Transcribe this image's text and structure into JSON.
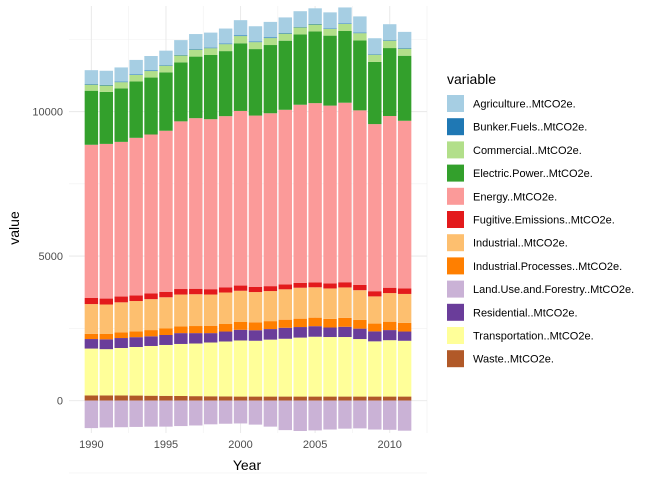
{
  "chart_data": {
    "type": "bar",
    "stacked": true,
    "xlabel": "Year",
    "ylabel": "value",
    "legend_title": "variable",
    "legend_position": "right",
    "grid": true,
    "xlim": [
      1988.5,
      2012.5
    ],
    "ylim": [
      -1120,
      13650
    ],
    "x_ticks": [
      1990,
      1995,
      2000,
      2005,
      2010
    ],
    "y_ticks": [
      0,
      5000,
      10000
    ],
    "x": [
      1990,
      1991,
      1992,
      1993,
      1994,
      1995,
      1996,
      1997,
      1998,
      1999,
      2000,
      2001,
      2002,
      2003,
      2004,
      2005,
      2006,
      2007,
      2008,
      2009,
      2010,
      2011
    ],
    "series": [
      {
        "name": "Agriculture..MtCO2e.",
        "color": "#A6CEE3",
        "values": [
          480,
          490,
          490,
          500,
          500,
          500,
          510,
          520,
          520,
          520,
          530,
          530,
          540,
          540,
          540,
          540,
          550,
          550,
          560,
          550,
          550,
          560
        ]
      },
      {
        "name": "Bunker.Fuels..MtCO2e.",
        "color": "#1F78B4",
        "values": [
          20,
          20,
          20,
          20,
          20,
          20,
          20,
          20,
          20,
          20,
          20,
          20,
          20,
          20,
          20,
          20,
          20,
          20,
          20,
          20,
          20,
          20
        ]
      },
      {
        "name": "Commercial..MtCO2e.",
        "color": "#B2DF8A",
        "values": [
          210,
          220,
          215,
          225,
          225,
          230,
          240,
          240,
          235,
          240,
          250,
          240,
          240,
          245,
          245,
          240,
          235,
          245,
          250,
          250,
          255,
          245
        ]
      },
      {
        "name": "Electric.Power..MtCO2e.",
        "color": "#33A02C",
        "values": [
          1870,
          1800,
          1850,
          1950,
          1970,
          2020,
          2040,
          2130,
          2220,
          2250,
          2340,
          2300,
          2360,
          2390,
          2430,
          2480,
          2420,
          2480,
          2420,
          2150,
          2350,
          2250
        ]
      },
      {
        "name": "Energy..MtCO2e.",
        "color": "#FB9A99",
        "values": [
          5300,
          5350,
          5350,
          5450,
          5500,
          5570,
          5800,
          5900,
          5880,
          5920,
          6040,
          5930,
          5980,
          6040,
          6160,
          6200,
          6150,
          6210,
          6040,
          5780,
          5940,
          5800
        ]
      },
      {
        "name": "Fugitive.Emissions..MtCO2e.",
        "color": "#E31A1C",
        "values": [
          210,
          205,
          200,
          195,
          195,
          190,
          190,
          190,
          185,
          180,
          180,
          175,
          170,
          170,
          170,
          170,
          175,
          180,
          180,
          180,
          185,
          190
        ]
      },
      {
        "name": "Industrial..MtCO2e.",
        "color": "#FDBF6F",
        "values": [
          1030,
          1020,
          1040,
          1050,
          1070,
          1080,
          1100,
          1100,
          1080,
          1090,
          1080,
          1050,
          1040,
          1050,
          1070,
          1050,
          1050,
          1050,
          1030,
          940,
          990,
          1000
        ]
      },
      {
        "name": "Industrial.Processes..MtCO2e.",
        "color": "#FF7F00",
        "values": [
          180,
          185,
          195,
          200,
          215,
          225,
          235,
          245,
          255,
          260,
          270,
          270,
          275,
          280,
          290,
          295,
          300,
          310,
          300,
          270,
          290,
          300
        ]
      },
      {
        "name": "Land.Use.and.Forestry..MtCO2e.",
        "color": "#CAB2D6",
        "values": [
          -950,
          -930,
          -920,
          -910,
          -900,
          -900,
          -880,
          -860,
          -820,
          -800,
          -790,
          -830,
          -900,
          -1020,
          -1050,
          -1030,
          -1000,
          -970,
          -960,
          -1000,
          -1010,
          -1040
        ]
      },
      {
        "name": "Residential..MtCO2e.",
        "color": "#6A3D9A",
        "values": [
          330,
          340,
          345,
          340,
          335,
          345,
          375,
          360,
          325,
          345,
          370,
          365,
          365,
          380,
          365,
          365,
          330,
          355,
          360,
          345,
          350,
          320
        ]
      },
      {
        "name": "Transportation..MtCO2e.",
        "color": "#FFFF99",
        "values": [
          1620,
          1600,
          1640,
          1680,
          1720,
          1760,
          1800,
          1820,
          1860,
          1900,
          1940,
          1930,
          1970,
          2000,
          2040,
          2070,
          2060,
          2060,
          1990,
          1910,
          1950,
          1930
        ]
      },
      {
        "name": "Waste..MtCO2e.",
        "color": "#B15928",
        "values": [
          180,
          180,
          180,
          175,
          170,
          165,
          160,
          155,
          150,
          145,
          140,
          140,
          140,
          140,
          140,
          140,
          140,
          140,
          140,
          140,
          140,
          140
        ]
      }
    ]
  }
}
